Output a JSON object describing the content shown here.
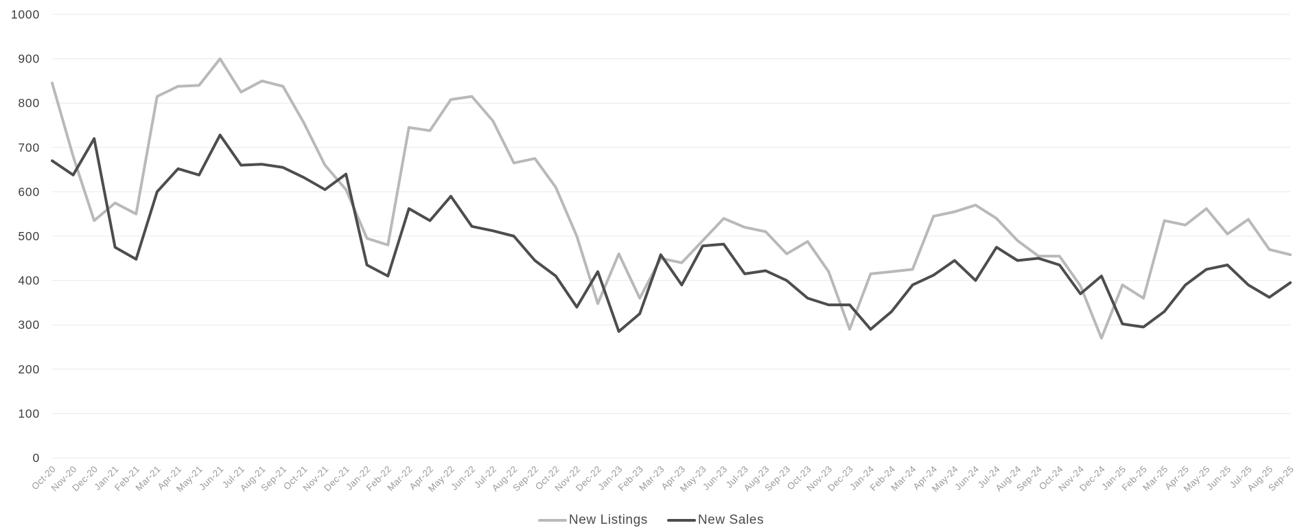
{
  "chart_data": {
    "type": "line",
    "title": "",
    "xlabel": "",
    "ylabel": "",
    "ylim": [
      0,
      1000
    ],
    "ytick_step": 100,
    "grid": true,
    "legend_position": "bottom",
    "grid_color": "#e8e8e8",
    "y_axis_text_color": "#3d3d3d",
    "x_axis_text_color": "#999999",
    "categories": [
      "Oct-20",
      "Nov-20",
      "Dec-20",
      "Jan-21",
      "Feb-21",
      "Mar-21",
      "Apr-21",
      "May-21",
      "Jun-21",
      "Jul-21",
      "Aug-21",
      "Sep-21",
      "Oct-21",
      "Nov-21",
      "Dec-21",
      "Jan-22",
      "Feb-22",
      "Mar-22",
      "Apr-22",
      "May-22",
      "Jun-22",
      "Jul-22",
      "Aug-22",
      "Sep-22",
      "Oct-22",
      "Nov-22",
      "Dec-22",
      "Jan-23",
      "Feb-23",
      "Mar-23",
      "Apr-23",
      "May-23",
      "Jun-23",
      "Jul-23",
      "Aug-23",
      "Sep-23",
      "Oct-23",
      "Nov-23",
      "Dec-23",
      "Jan-24",
      "Feb-24",
      "Mar-24",
      "Apr-24",
      "May-24",
      "Jun-24",
      "Jul-24",
      "Aug-24",
      "Sep-24",
      "Oct-24",
      "Nov-24",
      "Dec-24",
      "Jan-25",
      "Feb-25",
      "Mar-25",
      "Apr-25",
      "May-25",
      "Jun-25",
      "Jul-25",
      "Aug-25",
      "Sep-25"
    ],
    "series": [
      {
        "name": "New Listings",
        "color": "#b9b9b9",
        "values": [
          845,
          680,
          535,
          575,
          550,
          815,
          838,
          840,
          900,
          825,
          850,
          838,
          755,
          660,
          605,
          495,
          480,
          745,
          738,
          808,
          815,
          760,
          665,
          675,
          610,
          500,
          348,
          460,
          360,
          450,
          440,
          490,
          540,
          520,
          510,
          460,
          488,
          420,
          290,
          415,
          420,
          425,
          545,
          555,
          570,
          540,
          490,
          455,
          455,
          388,
          270,
          390,
          360,
          535,
          525,
          562,
          505,
          538,
          470,
          458
        ]
      },
      {
        "name": "New Sales",
        "color": "#4d4d4d",
        "values": [
          670,
          638,
          720,
          475,
          448,
          600,
          652,
          638,
          728,
          660,
          662,
          655,
          632,
          605,
          640,
          435,
          410,
          562,
          535,
          590,
          522,
          512,
          500,
          445,
          410,
          340,
          420,
          285,
          325,
          458,
          390,
          478,
          482,
          415,
          422,
          400,
          360,
          345,
          345,
          290,
          330,
          390,
          412,
          445,
          400,
          475,
          445,
          450,
          435,
          370,
          410,
          302,
          295,
          330,
          390,
          425,
          435,
          390,
          362,
          395
        ]
      }
    ]
  }
}
